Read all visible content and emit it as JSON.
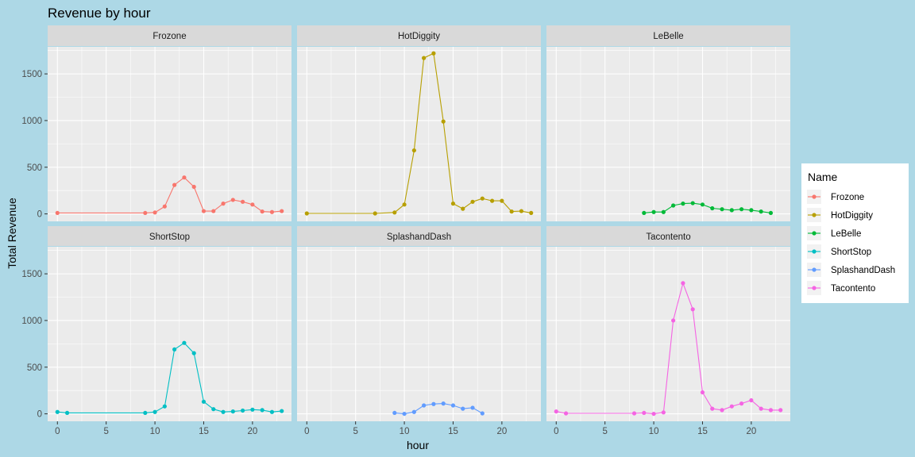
{
  "chart_data": {
    "type": "line",
    "title": "Revenue by hour",
    "xlabel": "hour",
    "ylabel": "Total Revenue",
    "xlim": [
      -1,
      24
    ],
    "ylim": [
      -80,
      1790
    ],
    "x_ticks": [
      0,
      5,
      10,
      15,
      20
    ],
    "y_ticks": [
      0,
      500,
      1000,
      1500
    ],
    "legend": {
      "title": "Name",
      "placement": "right"
    },
    "facets": [
      "Frozone",
      "HotDiggity",
      "LeBelle",
      "ShortStop",
      "SplashandDash",
      "Tacontento"
    ],
    "series": [
      {
        "name": "Frozone",
        "color": "#F8766D",
        "x": [
          0,
          9,
          10,
          11,
          12,
          13,
          14,
          15,
          16,
          17,
          18,
          19,
          20,
          21,
          22,
          23
        ],
        "y": [
          10,
          10,
          15,
          80,
          310,
          390,
          290,
          30,
          30,
          110,
          150,
          130,
          100,
          25,
          20,
          30
        ]
      },
      {
        "name": "HotDiggity",
        "color": "#B79F00",
        "x": [
          0,
          7,
          9,
          10,
          11,
          12,
          13,
          14,
          15,
          16,
          17,
          18,
          19,
          20,
          21,
          22,
          23
        ],
        "y": [
          5,
          5,
          15,
          100,
          680,
          1670,
          1720,
          990,
          110,
          55,
          130,
          165,
          140,
          140,
          25,
          30,
          10
        ]
      },
      {
        "name": "LeBelle",
        "color": "#00BA38",
        "x": [
          9,
          10,
          11,
          12,
          13,
          14,
          15,
          16,
          17,
          18,
          19,
          20,
          21,
          22
        ],
        "y": [
          10,
          20,
          20,
          90,
          110,
          115,
          100,
          60,
          50,
          40,
          50,
          40,
          25,
          10
        ]
      },
      {
        "name": "ShortStop",
        "color": "#00BFC4",
        "x": [
          0,
          1,
          9,
          10,
          11,
          12,
          13,
          14,
          15,
          16,
          17,
          18,
          19,
          20,
          21,
          22,
          23
        ],
        "y": [
          20,
          10,
          10,
          20,
          80,
          690,
          760,
          650,
          130,
          50,
          20,
          25,
          35,
          45,
          40,
          20,
          30
        ]
      },
      {
        "name": "SplashandDash",
        "color": "#619CFF",
        "x": [
          9,
          10,
          11,
          12,
          13,
          14,
          15,
          16,
          17,
          18
        ],
        "y": [
          10,
          0,
          20,
          90,
          105,
          110,
          90,
          55,
          65,
          5
        ]
      },
      {
        "name": "Tacontento",
        "color": "#F564E3",
        "x": [
          0,
          1,
          8,
          9,
          10,
          11,
          12,
          13,
          14,
          15,
          16,
          17,
          18,
          19,
          20,
          21,
          22,
          23
        ],
        "y": [
          25,
          5,
          5,
          10,
          0,
          15,
          1000,
          1400,
          1120,
          230,
          55,
          40,
          80,
          110,
          145,
          55,
          40,
          40
        ]
      }
    ]
  }
}
